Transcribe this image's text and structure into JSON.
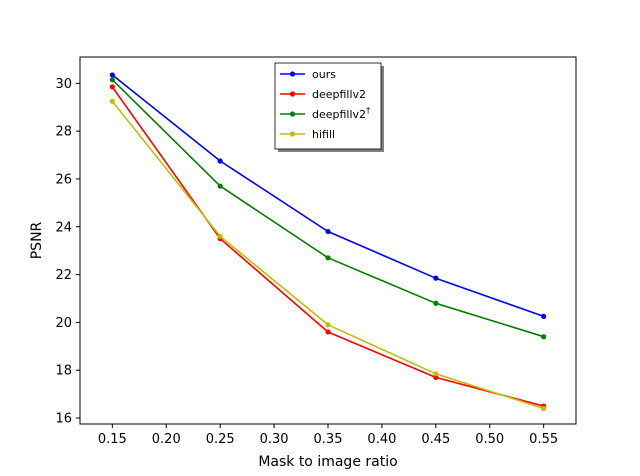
{
  "chart_data": {
    "type": "line",
    "title": "",
    "xlabel": "Mask to image ratio",
    "ylabel": "PSNR",
    "xlim": [
      0.12,
      0.58
    ],
    "ylim": [
      15.75,
      31.1
    ],
    "xticks": [
      0.15,
      0.2,
      0.25,
      0.3,
      0.35,
      0.4,
      0.45,
      0.5,
      0.55
    ],
    "xtick_labels": [
      "0.15",
      "0.20",
      "0.25",
      "0.30",
      "0.35",
      "0.40",
      "0.45",
      "0.50",
      "0.55"
    ],
    "yticks": [
      16,
      18,
      20,
      22,
      24,
      26,
      28,
      30
    ],
    "ytick_labels": [
      "16",
      "18",
      "20",
      "22",
      "24",
      "26",
      "28",
      "30"
    ],
    "grid": false,
    "legend_position": "top-center",
    "x": [
      0.15,
      0.25,
      0.35,
      0.45,
      0.55
    ],
    "series": [
      {
        "name": "ours",
        "name_sup": "",
        "color": "#0000ff",
        "values": [
          30.35,
          26.75,
          23.8,
          21.85,
          20.25
        ]
      },
      {
        "name": "deepfillv2",
        "name_sup": "",
        "color": "#ff0000",
        "values": [
          29.85,
          23.5,
          19.6,
          17.7,
          16.5
        ]
      },
      {
        "name": "deepfillv2",
        "name_sup": "†",
        "color": "#008000",
        "values": [
          30.15,
          25.7,
          22.7,
          20.8,
          19.4
        ]
      },
      {
        "name": "hifill",
        "name_sup": "",
        "color": "#bfbf00",
        "values": [
          29.25,
          23.6,
          19.9,
          17.85,
          16.4
        ]
      }
    ]
  }
}
